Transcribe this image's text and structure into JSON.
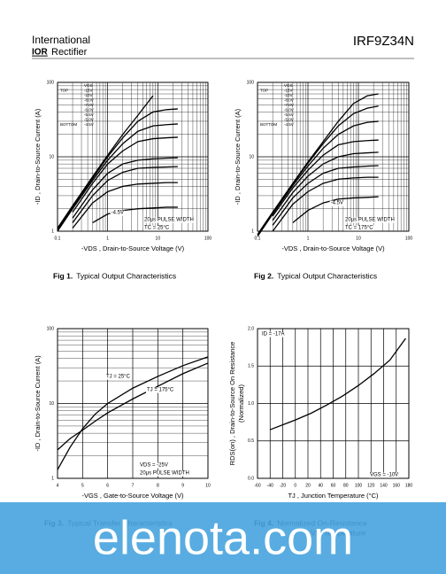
{
  "header": {
    "company": "International",
    "logo": "IOR",
    "company2": "Rectifier",
    "part_number": "IRF9Z34N"
  },
  "chart_data": [
    {
      "type": "line",
      "xscale": "log",
      "yscale": "log",
      "grid": true,
      "xlabel": "-VDS , Drain-to-Source Voltage (V)",
      "ylabel": "-ID , Drain-to-Source Current (A)",
      "xlim": [
        0.1,
        100
      ],
      "ylim": [
        1,
        100
      ],
      "xticks": [
        0.1,
        1,
        10,
        100
      ],
      "yticks": [
        1,
        10,
        100
      ],
      "legend_title": "VGS",
      "legend_top": "TOP",
      "legend_bottom": "BOTTOM",
      "annotations": [
        "-4.5V",
        "20µs PULSE WIDTH",
        "TC = 25°C"
      ],
      "x": [
        0.1,
        0.2,
        0.5,
        1,
        2,
        4,
        8,
        15,
        25
      ],
      "series": [
        {
          "name": "-15V",
          "color": "#000000",
          "values": [
            1.1,
            2.2,
            5.4,
            10.5,
            20,
            36,
            66,
            null,
            null
          ]
        },
        {
          "name": "-10V",
          "color": "#000000",
          "values": [
            1.05,
            2.1,
            5.1,
            10,
            18,
            30,
            40,
            43,
            44
          ]
        },
        {
          "name": "-8.0V",
          "color": "#000000",
          "values": [
            1.0,
            2.0,
            4.8,
            9,
            15,
            22,
            26,
            27,
            27.6
          ]
        },
        {
          "name": "-7.0V",
          "color": "#000000",
          "values": [
            null,
            1.8,
            4.4,
            8,
            12,
            16,
            17.5,
            18,
            18.3
          ]
        },
        {
          "name": "-6.0V",
          "color": "#000000",
          "values": [
            null,
            1.5,
            3.6,
            6,
            8,
            9,
            9.4,
            9.6,
            9.7
          ]
        },
        {
          "name": "-5.5V",
          "color": "#000000",
          "values": [
            null,
            1.3,
            3.0,
            4.8,
            6.2,
            7,
            7.2,
            7.3,
            7.4
          ]
        },
        {
          "name": "-5.0V",
          "color": "#000000",
          "values": [
            null,
            1.1,
            2.4,
            3.4,
            4,
            4.3,
            4.4,
            4.5,
            4.5
          ]
        },
        {
          "name": "-4.5V",
          "color": "#000000",
          "values": [
            null,
            null,
            1.3,
            1.7,
            1.9,
            2.0,
            2.05,
            2.1,
            2.1
          ]
        }
      ]
    },
    {
      "type": "line",
      "xscale": "log",
      "yscale": "log",
      "grid": true,
      "xlabel": "-VDS , Drain-to-Source Voltage (V)",
      "ylabel": "-ID , Drain-to-Source Current (A)",
      "xlim": [
        0.1,
        100
      ],
      "ylim": [
        1,
        100
      ],
      "xticks": [
        0.1,
        1,
        10,
        100
      ],
      "yticks": [
        1,
        10,
        100
      ],
      "legend_title": "VGS",
      "legend_top": "TOP",
      "legend_bottom": "BOTTOM",
      "annotations": [
        "-4.5V",
        "20µs PULSE WIDTH",
        "TC = 175°C"
      ],
      "x": [
        0.1,
        0.2,
        0.5,
        1,
        2,
        4,
        8,
        15,
        25
      ],
      "series": [
        {
          "name": "-15V",
          "color": "#000000",
          "values": [
            0.9,
            1.8,
            4.4,
            8.5,
            16,
            30,
            52,
            66,
            70
          ]
        },
        {
          "name": "-10V",
          "color": "#000000",
          "values": [
            0.9,
            1.8,
            4.3,
            8.2,
            15,
            26,
            38,
            45,
            48
          ]
        },
        {
          "name": "-8.0V",
          "color": "#000000",
          "values": [
            0.85,
            1.7,
            4.1,
            7.5,
            13,
            20,
            26,
            29,
            30
          ]
        },
        {
          "name": "-7.0V",
          "color": "#000000",
          "values": [
            null,
            1.6,
            3.8,
            6.6,
            10.5,
            14.5,
            16,
            16.5,
            16.8
          ]
        },
        {
          "name": "-6.0V",
          "color": "#000000",
          "values": [
            null,
            1.4,
            3.3,
            5.5,
            8,
            10,
            11,
            11.3,
            11.5
          ]
        },
        {
          "name": "-5.5V",
          "color": "#000000",
          "values": [
            null,
            1.2,
            2.8,
            4.4,
            6,
            7,
            7.3,
            7.5,
            7.6
          ]
        },
        {
          "name": "-5.0V",
          "color": "#000000",
          "values": [
            null,
            1.0,
            2.3,
            3.4,
            4.4,
            5,
            5.2,
            5.3,
            5.3
          ]
        },
        {
          "name": "-4.5V",
          "color": "#000000",
          "values": [
            null,
            null,
            1.3,
            1.9,
            2.4,
            2.7,
            2.8,
            2.85,
            2.9
          ]
        }
      ]
    },
    {
      "type": "line",
      "xscale": "linear",
      "yscale": "log",
      "grid": true,
      "xlabel": "-VGS , Gate-to-Source Voltage (V)",
      "ylabel": "-ID , Drain-to-Source Current (A)",
      "xlim": [
        4,
        10
      ],
      "ylim": [
        1,
        100
      ],
      "xticks": [
        4,
        5,
        6,
        7,
        8,
        9,
        10
      ],
      "yticks": [
        1,
        10,
        100
      ],
      "annotations": [
        "TJ = 25°C",
        "TJ = 175°C",
        "VDS = -25V",
        "20µs PULSE WIDTH"
      ],
      "x": [
        4,
        4.5,
        5,
        5.5,
        6,
        7,
        8,
        9,
        10
      ],
      "series": [
        {
          "name": "TJ = 25°C",
          "color": "#000000",
          "values": [
            1.3,
            2.6,
            4.6,
            7.2,
            10,
            16,
            23,
            32,
            42
          ]
        },
        {
          "name": "TJ = 175°C",
          "color": "#000000",
          "values": [
            2.4,
            3.4,
            4.4,
            5.8,
            7.5,
            11.5,
            17,
            25,
            34.6
          ]
        }
      ]
    },
    {
      "type": "line",
      "xscale": "linear",
      "yscale": "linear",
      "grid": true,
      "xlabel": "TJ , Junction Temperature (°C)",
      "ylabel": "RDS(on) , Drain-to-Source On Resistance",
      "ylabel2": "(Normalized)",
      "xlim": [
        -60,
        180
      ],
      "ylim": [
        0,
        2
      ],
      "xticks": [
        -60,
        -40,
        -20,
        0,
        20,
        40,
        60,
        80,
        100,
        120,
        140,
        160,
        180
      ],
      "yticks": [
        {
          "value": 0,
          "label": "0.0"
        },
        0.5,
        {
          "value": 1,
          "label": "1.0"
        },
        1.5,
        {
          "value": 2,
          "label": "2.0"
        }
      ],
      "annotations": [
        "ID = -17A",
        "VGS = -10V"
      ],
      "x": [
        -40,
        0,
        25,
        50,
        75,
        100,
        125,
        150,
        175
      ],
      "series": [
        {
          "name": "RDS(on)",
          "color": "#000000",
          "values": [
            0.65,
            0.78,
            0.87,
            0.98,
            1.1,
            1.24,
            1.4,
            1.58,
            1.87
          ]
        }
      ]
    }
  ],
  "captions": [
    {
      "number": "Fig 1.",
      "lines": [
        "Typical Output Characteristics"
      ]
    },
    {
      "number": "Fig 2.",
      "lines": [
        "Typical Output Characteristics"
      ]
    },
    {
      "number": "Fig 3.",
      "lines": [
        "Typical Transfer Characteristics"
      ]
    },
    {
      "number": "Fig 4.",
      "lines": [
        "Normalized On-Resistance",
        "Vs. Temperature"
      ]
    }
  ],
  "watermark": "elenota.com"
}
